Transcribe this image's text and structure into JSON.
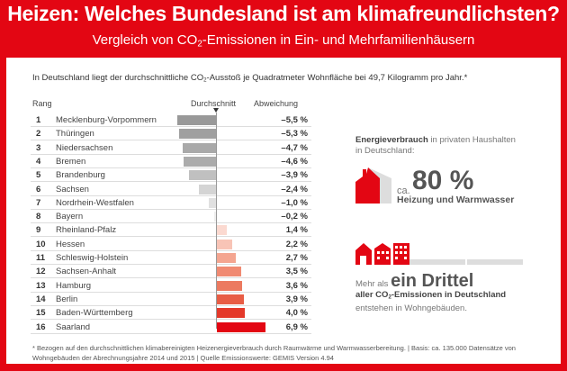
{
  "title": "Heizen: Welches Bundesland ist am klimafreundlichsten?",
  "subtitle_pre": "Vergleich von CO",
  "subtitle_sub": "2",
  "subtitle_post": "-Emissionen in Ein- und Mehrfamilienhäusern",
  "intro_pre": "In Deutschland liegt der durchschnittliche CO",
  "intro_sub": "2",
  "intro_post": "-Ausstoß je Quadratmeter Wohnfläche bei 49,7 Kilogramm pro Jahr.*",
  "headers": {
    "rank": "Rang",
    "avg": "Durchschnitt",
    "dev": "Abweichung"
  },
  "chart_data": {
    "type": "bar",
    "orientation": "horizontal",
    "xlabel": "Abweichung",
    "unit": "%",
    "baseline_label": "Durchschnitt",
    "categories": [
      "Mecklenburg-Vorpommern",
      "Thüringen",
      "Niedersachsen",
      "Bremen",
      "Brandenburg",
      "Sachsen",
      "Nordrhein-Westfalen",
      "Bayern",
      "Rheinland-Pfalz",
      "Hessen",
      "Schleswig-Holstein",
      "Sachsen-Anhalt",
      "Hamburg",
      "Berlin",
      "Baden-Württemberg",
      "Saarland"
    ],
    "ranks": [
      "1",
      "2",
      "3",
      "4",
      "5",
      "6",
      "7",
      "8",
      "9",
      "10",
      "11",
      "12",
      "13",
      "14",
      "15",
      "16"
    ],
    "values": [
      -5.5,
      -5.3,
      -4.7,
      -4.6,
      -3.9,
      -2.4,
      -1.0,
      -0.2,
      1.4,
      2.2,
      2.7,
      3.5,
      3.6,
      3.9,
      4.0,
      6.9
    ],
    "labels": [
      "–5,5 %",
      "–5,3 %",
      "–4,7 %",
      "–4,6 %",
      "–3,9 %",
      "–2,4 %",
      "–1,0 %",
      "–0,2 %",
      "1,4 %",
      "2,2 %",
      "2,7 %",
      "3,5 %",
      "3,6 %",
      "3,9 %",
      "4,0 %",
      "6,9 %"
    ],
    "colors": {
      "negative": [
        "#999999",
        "#a0a0a0",
        "#a9a9a9",
        "#ababab",
        "#c0c0c0",
        "#d4d4d4",
        "#e0e0e0",
        "#eeeeee"
      ],
      "positive": [
        "#fbd9d0",
        "#f8c4b6",
        "#f4a590",
        "#f08a72",
        "#ec7a60",
        "#e85d45",
        "#e4392a",
        "#e30613"
      ]
    }
  },
  "energy": {
    "bold": "Energieverbrauch",
    "rest": " in privaten Haushalten",
    "line2": "in Deutschland:",
    "ca": "ca.",
    "big": "80 %",
    "label": "Heizung und Warmwasser"
  },
  "third": {
    "pre": "Mehr als ",
    "big": "ein Drittel",
    "l2_pre": "aller CO",
    "l2_sub": "2",
    "l2_post": "-Emissionen in Deutschland",
    "l3": "entstehen in Wohngebäuden."
  },
  "footnote": "* Bezogen auf den durchschnittlichen klimabereinigten Heizenergieverbrauch durch Raumwärme und Warmwasserbereitung. | Basis: ca. 135.000 Datensätze von Wohngebäuden der Abrechnungsjahre 2014 und 2015 | Quelle Emissionswerte: GEMIS Version 4.94",
  "accent": "#e30613"
}
